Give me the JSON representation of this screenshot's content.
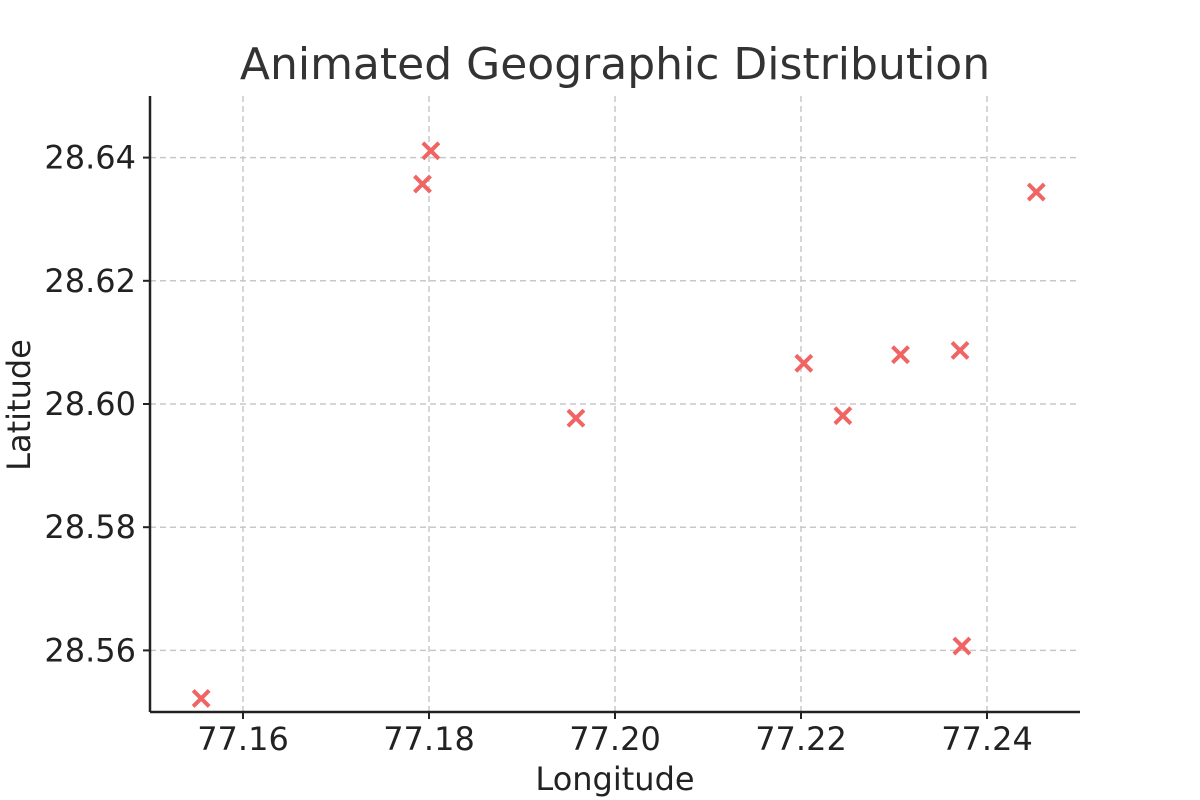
{
  "chart_data": {
    "type": "scatter",
    "title": "Animated Geographic Distribution",
    "xlabel": "Longitude",
    "ylabel": "Latitude",
    "xlim": [
      77.15,
      77.25
    ],
    "ylim": [
      28.55,
      28.65
    ],
    "xticks": [
      77.16,
      77.18,
      77.2,
      77.22,
      77.24
    ],
    "yticks": [
      28.56,
      28.58,
      28.6,
      28.62,
      28.64
    ],
    "x_tick_labels": [
      "77.16",
      "77.18",
      "77.20",
      "77.22",
      "77.24"
    ],
    "y_tick_labels": [
      "28.56",
      "28.58",
      "28.60",
      "28.62",
      "28.64"
    ],
    "grid": true,
    "marker": "x",
    "color": "#F06464",
    "points": [
      {
        "x": 77.1555,
        "y": 28.5522
      },
      {
        "x": 77.1793,
        "y": 28.6357
      },
      {
        "x": 77.1802,
        "y": 28.6411
      },
      {
        "x": 77.1958,
        "y": 28.5977
      },
      {
        "x": 77.2203,
        "y": 28.6066
      },
      {
        "x": 77.2245,
        "y": 28.5981
      },
      {
        "x": 77.2307,
        "y": 28.608
      },
      {
        "x": 77.2371,
        "y": 28.6087
      },
      {
        "x": 77.2373,
        "y": 28.5607
      },
      {
        "x": 77.2453,
        "y": 28.6344
      }
    ]
  }
}
